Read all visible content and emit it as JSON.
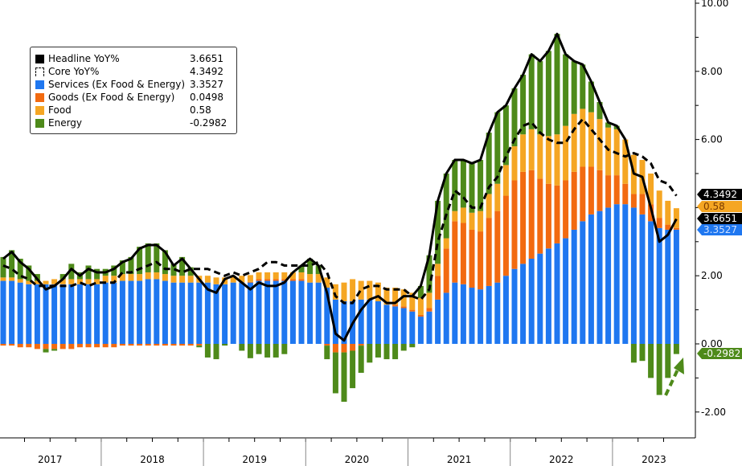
{
  "chart_data": {
    "type": "bar",
    "title": "",
    "xlabel": "",
    "ylabel": "",
    "ylim": [
      -2.6,
      10
    ],
    "y_ticks": [
      "10.00",
      "8.00",
      "6.00",
      "2.00",
      "0.00",
      "-2.00"
    ],
    "y_tick_values": [
      10,
      8,
      6,
      2,
      0,
      -2
    ],
    "year_labels": [
      "2017",
      "2018",
      "2019",
      "2020",
      "2021",
      "2022",
      "2023"
    ],
    "start": "2017-01",
    "frequency": "monthly",
    "legend_position": "top-left",
    "colors": {
      "headline": "#000000",
      "core": "#000000",
      "services": "#1f77f0",
      "goods": "#f26a10",
      "food": "#f5a623",
      "energy": "#4e8a1a"
    },
    "legend": [
      {
        "name": "Headline YoY%",
        "value": "3.6651",
        "key": "headline"
      },
      {
        "name": "Core YoY%",
        "value": "4.3492",
        "key": "core"
      },
      {
        "name": "Services (Ex Food & Energy)",
        "value": "3.3527",
        "key": "services"
      },
      {
        "name": "Goods (Ex Food & Energy)",
        "value": "0.0498",
        "key": "goods"
      },
      {
        "name": "Food",
        "value": "0.58",
        "key": "food"
      },
      {
        "name": "Energy",
        "value": "-0.2982",
        "key": "energy"
      }
    ],
    "last_value_tags": [
      {
        "label": "4.3492",
        "value": 4.3492,
        "key": "core"
      },
      {
        "label": "0.58",
        "value": 0.58,
        "key": "food"
      },
      {
        "label": "3.6651",
        "value": 3.6651,
        "key": "headline"
      },
      {
        "label": "3.3527",
        "value": 3.3527,
        "key": "services"
      },
      {
        "label": "-0.2982",
        "value": -0.2982,
        "key": "energy"
      }
    ],
    "series": [
      {
        "name": "Services",
        "key": "services",
        "values": [
          1.85,
          1.85,
          1.8,
          1.75,
          1.75,
          1.75,
          1.75,
          1.75,
          1.75,
          1.75,
          1.75,
          1.75,
          1.8,
          1.8,
          1.85,
          1.85,
          1.85,
          1.9,
          1.9,
          1.85,
          1.8,
          1.8,
          1.8,
          1.8,
          1.8,
          1.75,
          1.75,
          1.8,
          1.8,
          1.8,
          1.85,
          1.85,
          1.85,
          1.85,
          1.85,
          1.85,
          1.8,
          1.8,
          1.65,
          1.3,
          1.25,
          1.25,
          1.3,
          1.3,
          1.25,
          1.15,
          1.1,
          1.05,
          0.95,
          0.8,
          0.95,
          1.3,
          1.5,
          1.8,
          1.75,
          1.65,
          1.6,
          1.7,
          1.8,
          2.0,
          2.2,
          2.35,
          2.5,
          2.65,
          2.8,
          2.95,
          3.1,
          3.35,
          3.6,
          3.8,
          3.9,
          4.0,
          4.1,
          4.1,
          4.0,
          3.8,
          3.6,
          3.4,
          3.35,
          3.3527
        ]
      },
      {
        "name": "Goods",
        "key": "goods",
        "values": [
          -0.05,
          -0.05,
          -0.1,
          -0.1,
          -0.15,
          -0.15,
          -0.15,
          -0.15,
          -0.15,
          -0.1,
          -0.1,
          -0.1,
          -0.1,
          -0.1,
          -0.05,
          -0.05,
          -0.05,
          -0.05,
          -0.05,
          -0.05,
          -0.05,
          -0.05,
          -0.05,
          -0.05,
          0,
          0,
          0,
          0,
          0,
          0.02,
          0.05,
          0.05,
          0.05,
          0.05,
          0.05,
          0.05,
          0,
          0,
          -0.05,
          -0.25,
          -0.25,
          -0.2,
          -0.05,
          0,
          0,
          0,
          0.05,
          0.05,
          0.05,
          0.05,
          0.1,
          0.7,
          1.3,
          1.8,
          1.8,
          1.7,
          1.7,
          2.0,
          2.1,
          2.35,
          2.6,
          2.7,
          2.6,
          2.2,
          1.9,
          1.7,
          1.7,
          1.7,
          1.6,
          1.4,
          1.2,
          0.95,
          0.85,
          0.6,
          0.4,
          0.6,
          0.5,
          0.3,
          0.15,
          0.0498
        ]
      },
      {
        "name": "Food",
        "key": "food",
        "values": [
          0.1,
          0.1,
          0.1,
          0.1,
          0.1,
          0.1,
          0.15,
          0.15,
          0.15,
          0.15,
          0.15,
          0.15,
          0.2,
          0.2,
          0.2,
          0.2,
          0.2,
          0.2,
          0.2,
          0.2,
          0.2,
          0.2,
          0.2,
          0.2,
          0.2,
          0.2,
          0.2,
          0.2,
          0.2,
          0.2,
          0.2,
          0.2,
          0.2,
          0.2,
          0.2,
          0.2,
          0.25,
          0.25,
          0.3,
          0.45,
          0.55,
          0.65,
          0.55,
          0.55,
          0.55,
          0.5,
          0.5,
          0.5,
          0.5,
          0.5,
          0.45,
          0.35,
          0.3,
          0.3,
          0.45,
          0.5,
          0.6,
          0.7,
          0.8,
          0.9,
          1.0,
          1.1,
          1.2,
          1.3,
          1.4,
          1.5,
          1.6,
          1.7,
          1.7,
          1.6,
          1.5,
          1.4,
          1.35,
          1.3,
          1.15,
          1.0,
          0.9,
          0.8,
          0.7,
          0.58
        ]
      },
      {
        "name": "Energy",
        "key": "energy",
        "values": [
          0.6,
          0.8,
          0.6,
          0.45,
          0.2,
          -0.1,
          -0.05,
          0.15,
          0.45,
          0.2,
          0.4,
          0.3,
          0.2,
          0.3,
          0.4,
          0.5,
          0.8,
          0.85,
          0.85,
          0.7,
          0.35,
          0.55,
          0.25,
          -0.05,
          -0.4,
          -0.45,
          -0.05,
          0,
          -0.2,
          -0.42,
          -0.3,
          -0.4,
          -0.4,
          -0.3,
          0,
          0.2,
          0.45,
          0.25,
          -0.4,
          -1.2,
          -1.45,
          -1.1,
          -0.8,
          -0.55,
          -0.4,
          -0.45,
          -0.45,
          -0.2,
          -0.1,
          0.35,
          1.1,
          1.85,
          1.9,
          1.5,
          1.4,
          1.45,
          1.5,
          1.8,
          2.1,
          1.75,
          1.7,
          1.75,
          2.2,
          2.15,
          2.5,
          2.95,
          2.1,
          1.55,
          1.3,
          0.9,
          0.5,
          0.15,
          0.1,
          0,
          -0.55,
          -0.5,
          -1.0,
          -1.5,
          -1.0,
          -0.2982
        ]
      },
      {
        "name": "Headline YoY%",
        "key": "headline",
        "type": "line",
        "values": [
          2.5,
          2.7,
          2.4,
          2.2,
          1.9,
          1.6,
          1.7,
          1.9,
          2.2,
          2.0,
          2.2,
          2.1,
          2.1,
          2.2,
          2.4,
          2.5,
          2.8,
          2.9,
          2.9,
          2.7,
          2.3,
          2.5,
          2.2,
          1.9,
          1.6,
          1.5,
          1.9,
          2.0,
          1.8,
          1.6,
          1.8,
          1.7,
          1.7,
          1.8,
          2.1,
          2.3,
          2.5,
          2.3,
          1.5,
          0.3,
          0.1,
          0.6,
          1.0,
          1.3,
          1.4,
          1.2,
          1.2,
          1.4,
          1.4,
          1.7,
          2.6,
          4.2,
          5.0,
          5.4,
          5.4,
          5.3,
          5.4,
          6.2,
          6.8,
          7.0,
          7.5,
          7.9,
          8.5,
          8.3,
          8.6,
          9.1,
          8.5,
          8.3,
          8.2,
          7.7,
          7.1,
          6.5,
          6.4,
          6.0,
          5.0,
          4.9,
          4.0,
          3.0,
          3.2,
          3.6651
        ]
      },
      {
        "name": "Core YoY%",
        "key": "core",
        "type": "line",
        "dashed": true,
        "values": [
          2.3,
          2.2,
          2.0,
          1.9,
          1.7,
          1.7,
          1.7,
          1.7,
          1.7,
          1.8,
          1.7,
          1.8,
          1.8,
          1.8,
          2.1,
          2.1,
          2.2,
          2.3,
          2.4,
          2.2,
          2.2,
          2.1,
          2.2,
          2.2,
          2.2,
          2.1,
          2.0,
          2.1,
          2.0,
          2.1,
          2.2,
          2.4,
          2.4,
          2.3,
          2.3,
          2.3,
          2.3,
          2.4,
          2.1,
          1.4,
          1.2,
          1.2,
          1.6,
          1.7,
          1.7,
          1.6,
          1.6,
          1.6,
          1.4,
          1.3,
          1.6,
          3.0,
          3.8,
          4.5,
          4.3,
          4.0,
          4.0,
          4.6,
          4.9,
          5.5,
          6.0,
          6.4,
          6.5,
          6.2,
          6.0,
          5.9,
          5.9,
          6.3,
          6.6,
          6.3,
          6.0,
          5.7,
          5.6,
          5.5,
          5.6,
          5.5,
          5.3,
          4.8,
          4.7,
          4.3492
        ]
      }
    ]
  }
}
